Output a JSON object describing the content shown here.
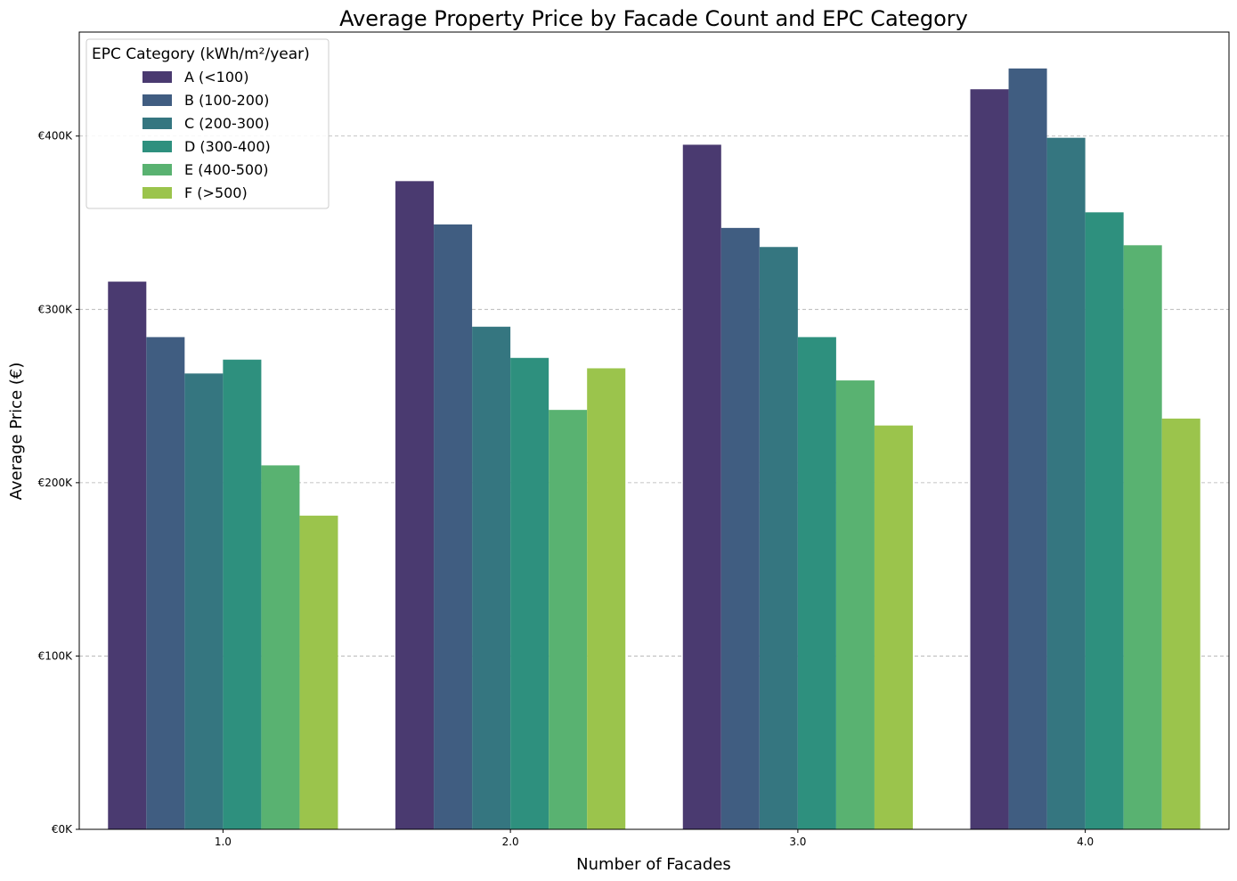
{
  "chart_data": {
    "type": "bar",
    "title": "Average Property Price by Facade Count and EPC Category",
    "xlabel": "Number of Facades",
    "ylabel": "Average Price (€)",
    "categories": [
      "1.0",
      "2.0",
      "3.0",
      "4.0"
    ],
    "ylim": [
      0,
      460000
    ],
    "yticks": [
      0,
      100000,
      200000,
      300000,
      400000
    ],
    "ytick_labels": [
      "€0K",
      "€100K",
      "€200K",
      "€300K",
      "€400K"
    ],
    "grid": "y-dashed",
    "legend": {
      "title": "EPC Category (kWh/m²/year)",
      "placement": "top-left"
    },
    "series": [
      {
        "name": "A (<100)",
        "color": "#4a3a70",
        "values": [
          316000,
          374000,
          395000,
          427000
        ]
      },
      {
        "name": "B (100-200)",
        "color": "#405d81",
        "values": [
          284000,
          349000,
          347000,
          439000
        ]
      },
      {
        "name": "C (200-300)",
        "color": "#357680",
        "values": [
          263000,
          290000,
          336000,
          399000
        ]
      },
      {
        "name": "D (300-400)",
        "color": "#2e907e",
        "values": [
          271000,
          272000,
          284000,
          356000
        ]
      },
      {
        "name": "E (400-500)",
        "color": "#59b271",
        "values": [
          210000,
          242000,
          259000,
          337000
        ]
      },
      {
        "name": "F (>500)",
        "color": "#9bc44c",
        "values": [
          181000,
          266000,
          233000,
          237000
        ]
      }
    ]
  }
}
